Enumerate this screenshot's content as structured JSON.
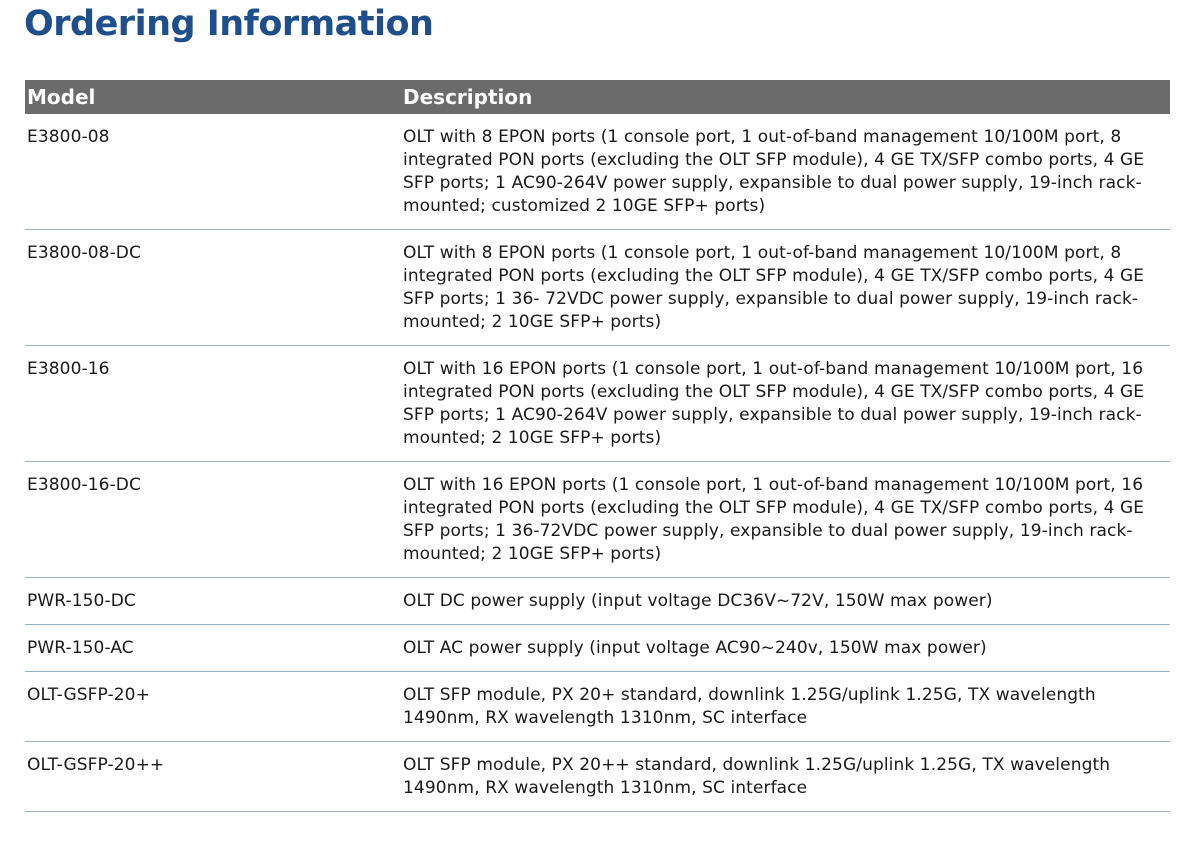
{
  "title": "Ordering Information",
  "table": {
    "headers": {
      "model": "Model",
      "description": "Description"
    },
    "rows": [
      {
        "model": "E3800-08",
        "description": "OLT with 8 EPON ports (1 console port,  1 out-of-band management 10/100M port,  8 integrated PON ports (excluding the OLT SFP module),  4 GE TX/SFP combo ports, 4 GE SFP ports; 1 AC90-264V power supply,  expansible to dual power supply,  19-inch rack-mounted; customized 2 10GE SFP+ ports)"
      },
      {
        "model": "E3800-08-DC",
        "description": "OLT with 8 EPON ports (1 console port,  1 out-of-band management 10/100M port,  8 integrated PON ports (excluding the OLT SFP module),  4 GE TX/SFP combo ports, 4 GE SFP ports; 1 36- 72VDC power supply,  expansible to dual power supply,  19-inch rack-mounted; 2 10GE SFP+ ports)"
      },
      {
        "model": "E3800-16",
        "description": "OLT with 16 EPON ports (1 console port,  1 out-of-band management 10/100M port, 16 integrated PON ports (excluding the OLT SFP module),  4 GE TX/SFP combo ports,  4 GE SFP ports; 1 AC90-264V power supply,  expansible to dual power supply, 19-inch rack-mounted; 2 10GE SFP+ ports)"
      },
      {
        "model": "E3800-16-DC",
        "description": "OLT with 16 EPON ports (1 console port,  1 out-of-band management 10/100M port, 16 integrated PON ports (excluding the OLT SFP module),  4 GE TX/SFP combo ports,  4 GE SFP ports; 1 36-72VDC power supply,  expansible to dual power supply, 19-inch rack-mounted; 2 10GE SFP+ ports)"
      },
      {
        "model": "PWR-150-DC",
        "description": "OLT DC power supply (input voltage DC36V~72V, 150W max power)"
      },
      {
        "model": "PWR-150-AC",
        "description": "OLT AC power supply (input voltage AC90~240v, 150W max power)"
      },
      {
        "model": "OLT-GSFP-20+",
        "description": "OLT SFP module, PX 20+ standard, downlink 1.25G/uplink 1.25G, TX wavelength 1490nm, RX wavelength 1310nm, SC interface"
      },
      {
        "model": "OLT-GSFP-20++",
        "description": "OLT SFP module, PX 20++ standard, downlink 1.25G/uplink 1.25G, TX wavelength 1490nm, RX wavelength 1310nm, SC interface"
      }
    ]
  },
  "colors": {
    "title": "#1f4e8c",
    "header_bg": "#6b6b6b",
    "header_text": "#ffffff",
    "row_divider": "#9ab0c7"
  }
}
